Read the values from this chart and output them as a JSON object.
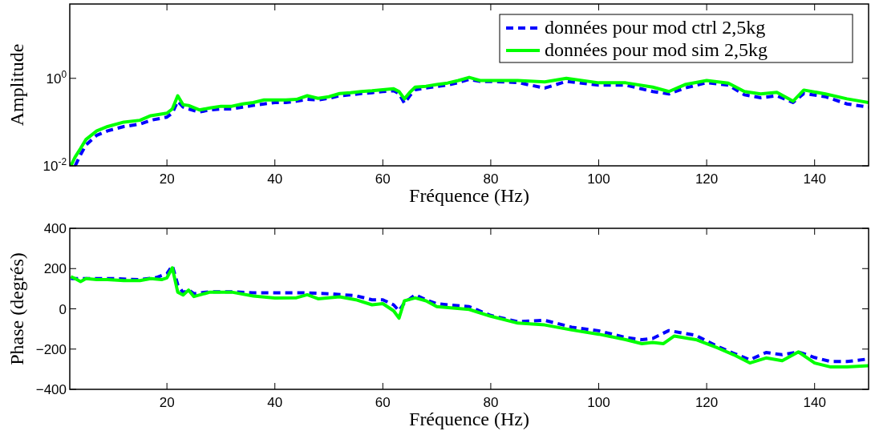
{
  "chart_data": [
    {
      "type": "line",
      "xlabel": "Fréquence (Hz)",
      "ylabel": "Amplitude",
      "log": "y",
      "grid": false,
      "legend": "top right",
      "xlim": [
        2,
        150
      ],
      "xticks": [
        20,
        40,
        60,
        80,
        100,
        120,
        140
      ],
      "ylim": [
        0.01,
        50
      ],
      "yticks": [
        {
          "value": 0.01,
          "label": "10$^{-2}$"
        },
        {
          "value": 1,
          "label": "10$^{0}$"
        }
      ],
      "series": [
        {
          "name": "données pour mod ctrl 2,5kg",
          "color": "#0000ff",
          "line_style": "dashed",
          "x": [
            3,
            4,
            5,
            7,
            9,
            12,
            15,
            17,
            20,
            21,
            22,
            23,
            24,
            26,
            28,
            30,
            32,
            34,
            36,
            38,
            40,
            42,
            44,
            46,
            48,
            50,
            52,
            54,
            56,
            58,
            60,
            62,
            63,
            64,
            65,
            66,
            68,
            70,
            72,
            74,
            76,
            78,
            80,
            85,
            90,
            94,
            100,
            105,
            110,
            113,
            116,
            120,
            124,
            127,
            130,
            133,
            136,
            138,
            142,
            146,
            150
          ],
          "values": [
            0.01,
            0.018,
            0.03,
            0.05,
            0.063,
            0.079,
            0.09,
            0.11,
            0.13,
            0.16,
            0.3,
            0.22,
            0.2,
            0.17,
            0.19,
            0.2,
            0.2,
            0.22,
            0.24,
            0.26,
            0.28,
            0.28,
            0.3,
            0.33,
            0.32,
            0.35,
            0.4,
            0.42,
            0.45,
            0.47,
            0.5,
            0.52,
            0.45,
            0.27,
            0.4,
            0.55,
            0.6,
            0.65,
            0.7,
            0.8,
            0.95,
            0.85,
            0.85,
            0.8,
            0.6,
            0.85,
            0.7,
            0.7,
            0.5,
            0.44,
            0.6,
            0.8,
            0.7,
            0.42,
            0.36,
            0.4,
            0.28,
            0.45,
            0.38,
            0.26,
            0.22
          ]
        },
        {
          "name": "données pour mod sim 2,5kg",
          "color": "#00ff00",
          "line_style": "solid",
          "x": [
            2.2,
            3,
            4,
            5,
            7,
            9,
            12,
            15,
            17,
            20,
            21,
            22,
            23,
            24,
            26,
            28,
            30,
            32,
            34,
            36,
            38,
            40,
            42,
            44,
            46,
            48,
            50,
            52,
            54,
            56,
            58,
            60,
            62,
            63,
            64,
            65,
            66,
            68,
            70,
            72,
            74,
            76,
            78,
            80,
            85,
            90,
            94,
            100,
            105,
            110,
            113,
            116,
            120,
            124,
            127,
            130,
            133,
            136,
            138,
            142,
            146,
            150
          ],
          "values": [
            0.01,
            0.016,
            0.025,
            0.04,
            0.063,
            0.079,
            0.1,
            0.11,
            0.14,
            0.16,
            0.2,
            0.4,
            0.25,
            0.24,
            0.19,
            0.21,
            0.23,
            0.23,
            0.26,
            0.28,
            0.32,
            0.32,
            0.32,
            0.33,
            0.4,
            0.35,
            0.38,
            0.45,
            0.47,
            0.5,
            0.52,
            0.55,
            0.58,
            0.5,
            0.34,
            0.48,
            0.63,
            0.66,
            0.72,
            0.78,
            0.89,
            1.05,
            0.89,
            0.89,
            0.89,
            0.83,
            1,
            0.79,
            0.79,
            0.63,
            0.5,
            0.72,
            0.89,
            0.78,
            0.5,
            0.44,
            0.48,
            0.3,
            0.54,
            0.44,
            0.34,
            0.28
          ]
        }
      ]
    },
    {
      "type": "line",
      "xlabel": "Fréquence (Hz)",
      "ylabel": "Phase (degrés)",
      "grid": false,
      "legend": false,
      "xlim": [
        2,
        150
      ],
      "xticks": [
        20,
        40,
        60,
        80,
        100,
        120,
        140
      ],
      "ylim": [
        -400,
        400
      ],
      "yticks": [
        -400,
        -200,
        0,
        200,
        400
      ],
      "series": [
        {
          "color": "#0000ff",
          "line_style": "dashed",
          "x": [
            2.2,
            5,
            10,
            15,
            18,
            20,
            21,
            22,
            23,
            24,
            25,
            28,
            32,
            36,
            40,
            45,
            50,
            55,
            58,
            60,
            62,
            63,
            64,
            66,
            68,
            70,
            76,
            80,
            85,
            90,
            95,
            100,
            105,
            108,
            110,
            113,
            118,
            122,
            125,
            128,
            131,
            134,
            137,
            140,
            143,
            146,
            150
          ],
          "values": [
            150,
            150,
            150,
            145,
            155,
            175,
            215,
            120,
            80,
            95,
            75,
            85,
            85,
            80,
            80,
            80,
            75,
            65,
            45,
            45,
            20,
            -10,
            30,
            70,
            45,
            25,
            11,
            -33,
            -64,
            -57,
            -91,
            -109,
            -143,
            -153,
            -147,
            -108,
            -132,
            -187,
            -221,
            -253,
            -217,
            -228,
            -214,
            -242,
            -262,
            -262,
            -249
          ]
        },
        {
          "color": "#00ff00",
          "line_style": "solid",
          "x": [
            2.2,
            3,
            4,
            5,
            7,
            9,
            12,
            15,
            17,
            19,
            20,
            21,
            22,
            23,
            24,
            25,
            28,
            32,
            36,
            40,
            44,
            46,
            48,
            52,
            55,
            58,
            60,
            62,
            63,
            64,
            66,
            68,
            70,
            76,
            80,
            85,
            90,
            95,
            100,
            105,
            108,
            110,
            112,
            114,
            118,
            122,
            125,
            128,
            131,
            134,
            137,
            140,
            143,
            146,
            150
          ],
          "values": [
            160,
            150,
            135,
            150,
            145,
            145,
            140,
            140,
            150,
            145,
            154,
            204,
            83,
            69,
            93,
            61,
            83,
            83,
            64,
            54,
            55,
            70,
            50,
            60,
            45,
            20,
            26,
            -10,
            -46,
            40,
            54,
            40,
            11,
            -3,
            -37,
            -71,
            -80,
            -105,
            -126,
            -153,
            -173,
            -167,
            -173,
            -135,
            -153,
            -194,
            -228,
            -269,
            -244,
            -258,
            -214,
            -269,
            -289,
            -289,
            -283
          ]
        }
      ]
    }
  ]
}
